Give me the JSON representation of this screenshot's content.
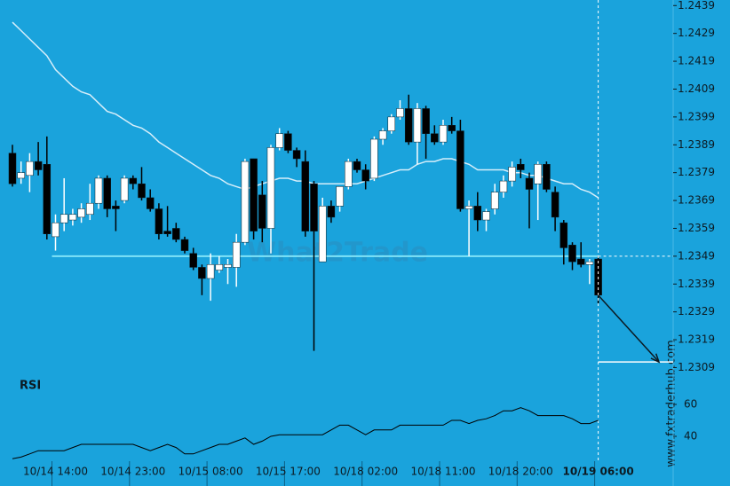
{
  "chart_data": {
    "type": "candlestick",
    "categories": [
      null,
      null,
      null,
      null,
      null,
      "10/14 14:00",
      null,
      null,
      null,
      null,
      null,
      null,
      null,
      null,
      "10/14 23:00",
      null,
      null,
      null,
      null,
      null,
      null,
      null,
      null,
      "10/15 08:00",
      null,
      null,
      null,
      null,
      null,
      null,
      null,
      null,
      "10/15 17:00",
      null,
      null,
      null,
      null,
      null,
      null,
      null,
      null,
      "10/18 02:00",
      null,
      null,
      null,
      null,
      null,
      null,
      null,
      null,
      "10/18 11:00",
      null,
      null,
      null,
      null,
      null,
      null,
      null,
      null,
      "10/18 20:00",
      null,
      null,
      null,
      null,
      null,
      null,
      null,
      null,
      "10/19 06:00"
    ],
    "open": [
      1.2386,
      1.2377,
      1.2378,
      1.2383,
      1.2382,
      1.2356,
      1.2361,
      1.2362,
      1.2363,
      1.2364,
      1.2368,
      1.2377,
      1.2367,
      1.2369,
      1.2377,
      1.2375,
      1.237,
      1.2366,
      1.2358,
      1.2359,
      1.2355,
      1.235,
      1.2345,
      1.2341,
      1.2344,
      1.2345,
      1.2345,
      1.2354,
      1.2384,
      1.2371,
      1.2359,
      1.2388,
      1.2393,
      1.2387,
      1.2383,
      1.2375,
      1.2347,
      1.2367,
      1.2367,
      1.2374,
      1.2383,
      1.238,
      1.2377,
      1.2391,
      1.2394,
      1.2399,
      1.2402,
      1.239,
      1.2402,
      1.2393,
      1.239,
      1.2396,
      1.2394,
      1.2366,
      1.2367,
      1.2362,
      1.2366,
      1.2372,
      1.2376,
      1.2382,
      1.2377,
      1.2375,
      1.2382,
      1.2372,
      1.2361,
      1.2353,
      1.2348,
      1.2346,
      1.2348
    ],
    "high": [
      1.2389,
      1.2383,
      1.2386,
      1.239,
      1.2392,
      1.2364,
      1.2377,
      1.2366,
      1.2368,
      1.2375,
      1.2378,
      1.2378,
      1.2369,
      1.2378,
      1.2378,
      1.2381,
      1.2373,
      1.2368,
      1.2367,
      1.2361,
      1.2356,
      1.2352,
      1.2346,
      1.235,
      1.2349,
      1.2348,
      1.2357,
      1.2384,
      1.2384,
      1.2376,
      1.2389,
      1.2395,
      1.2394,
      1.2388,
      1.2387,
      1.2376,
      1.237,
      1.2369,
      1.2374,
      1.2384,
      1.2384,
      1.2382,
      1.2392,
      1.2395,
      1.24,
      1.2405,
      1.2407,
      1.2404,
      1.2403,
      1.2396,
      1.2398,
      1.2399,
      1.2398,
      1.2369,
      1.2372,
      1.2366,
      1.2375,
      1.2378,
      1.2383,
      1.2384,
      1.2379,
      1.2383,
      1.2383,
      1.2374,
      1.2362,
      1.2354,
      1.2354,
      1.2348,
      1.2349
    ],
    "low": [
      1.2374,
      1.2375,
      1.2372,
      1.2378,
      1.2355,
      1.2351,
      1.2358,
      1.236,
      1.2361,
      1.2362,
      1.2366,
      1.2363,
      1.2358,
      1.2368,
      1.2373,
      1.2369,
      1.2365,
      1.2355,
      1.2356,
      1.2354,
      1.235,
      1.2344,
      1.2335,
      1.2333,
      1.2343,
      1.2339,
      1.2338,
      1.2353,
      1.2355,
      1.2354,
      1.235,
      1.2387,
      1.2386,
      1.2381,
      1.2356,
      1.2315,
      1.2347,
      1.2361,
      1.2365,
      1.2373,
      1.2379,
      1.2373,
      1.2376,
      1.2389,
      1.2393,
      1.2398,
      1.2389,
      1.2382,
      1.2384,
      1.2389,
      1.2389,
      1.2393,
      1.2365,
      1.2349,
      1.2358,
      1.2358,
      1.2364,
      1.237,
      1.2374,
      1.2377,
      1.2359,
      1.2362,
      1.2372,
      1.2358,
      1.2346,
      1.2344,
      1.2345,
      1.2339,
      1.2332
    ],
    "close": [
      1.2375,
      1.2379,
      1.2383,
      1.238,
      1.2357,
      1.2361,
      1.2364,
      1.2364,
      1.2366,
      1.2368,
      1.2377,
      1.2366,
      1.2366,
      1.2377,
      1.2375,
      1.237,
      1.2366,
      1.2357,
      1.2357,
      1.2355,
      1.2351,
      1.2345,
      1.2341,
      1.2346,
      1.2346,
      1.2346,
      1.2354,
      1.2383,
      1.2358,
      1.2359,
      1.2388,
      1.2393,
      1.2387,
      1.2384,
      1.2358,
      1.2358,
      1.2367,
      1.2363,
      1.2374,
      1.2383,
      1.238,
      1.2376,
      1.2391,
      1.2394,
      1.2399,
      1.2402,
      1.239,
      1.2402,
      1.2393,
      1.239,
      1.2396,
      1.2394,
      1.2366,
      1.2367,
      1.2362,
      1.2365,
      1.2372,
      1.2376,
      1.2381,
      1.238,
      1.2373,
      1.2382,
      1.2373,
      1.2363,
      1.2352,
      1.2347,
      1.2346,
      1.2347,
      1.2335
    ],
    "color_up": "#ffffff",
    "color_down": "#000000",
    "ylim": [
      1.2298,
      1.2441
    ],
    "yticks": [
      1.2439,
      1.2429,
      1.2419,
      1.2409,
      1.2399,
      1.2389,
      1.2379,
      1.2369,
      1.2359,
      1.2349,
      1.2339,
      1.2329,
      1.2319,
      1.2309
    ],
    "moving_average": {
      "color": "#d6eefa",
      "values": [
        1.2433,
        1.243,
        1.2427,
        1.2424,
        1.2421,
        1.2416,
        1.2413,
        1.241,
        1.2408,
        1.2407,
        1.2404,
        1.2401,
        1.24,
        1.2398,
        1.2396,
        1.2395,
        1.2393,
        1.239,
        1.2388,
        1.2386,
        1.2384,
        1.2382,
        1.238,
        1.2378,
        1.2377,
        1.2375,
        1.2374,
        1.2373,
        1.2374,
        1.2375,
        1.2376,
        1.2377,
        1.2377,
        1.2376,
        1.2376,
        1.2375,
        1.2375,
        1.2375,
        1.2375,
        1.2375,
        1.2375,
        1.2376,
        1.2377,
        1.2378,
        1.2379,
        1.238,
        1.238,
        1.2382,
        1.2383,
        1.2383,
        1.2384,
        1.2384,
        1.2383,
        1.2382,
        1.238,
        1.238,
        1.238,
        1.238,
        1.2379,
        1.2379,
        1.2378,
        1.2378,
        1.2377,
        1.2376,
        1.2375,
        1.2375,
        1.2373,
        1.2372,
        1.237
      ]
    },
    "support_level": 1.2349,
    "support_color": "#7fe3f7",
    "target_level": 1.2311,
    "annotation_color": "#ffffff",
    "rsi": {
      "label": "RSI",
      "color": "#000000",
      "ylim": [
        25,
        80
      ],
      "yticks": [
        40,
        60
      ],
      "values": [
        26,
        27,
        29,
        31,
        31,
        31,
        31,
        33,
        35,
        35,
        35,
        35,
        35,
        35,
        35,
        33,
        31,
        33,
        35,
        33,
        29,
        29,
        31,
        33,
        35,
        35,
        37,
        39,
        35,
        37,
        40,
        41,
        41,
        41,
        41,
        41,
        41,
        44,
        47,
        47,
        44,
        41,
        44,
        44,
        44,
        47,
        47,
        47,
        47,
        47,
        47,
        50,
        50,
        48,
        50,
        51,
        53,
        56,
        56,
        58,
        56,
        53,
        53,
        53,
        53,
        51,
        48,
        48,
        50
      ]
    },
    "watermark": "What2Trade",
    "source": "www.fxtraderhub.com"
  }
}
